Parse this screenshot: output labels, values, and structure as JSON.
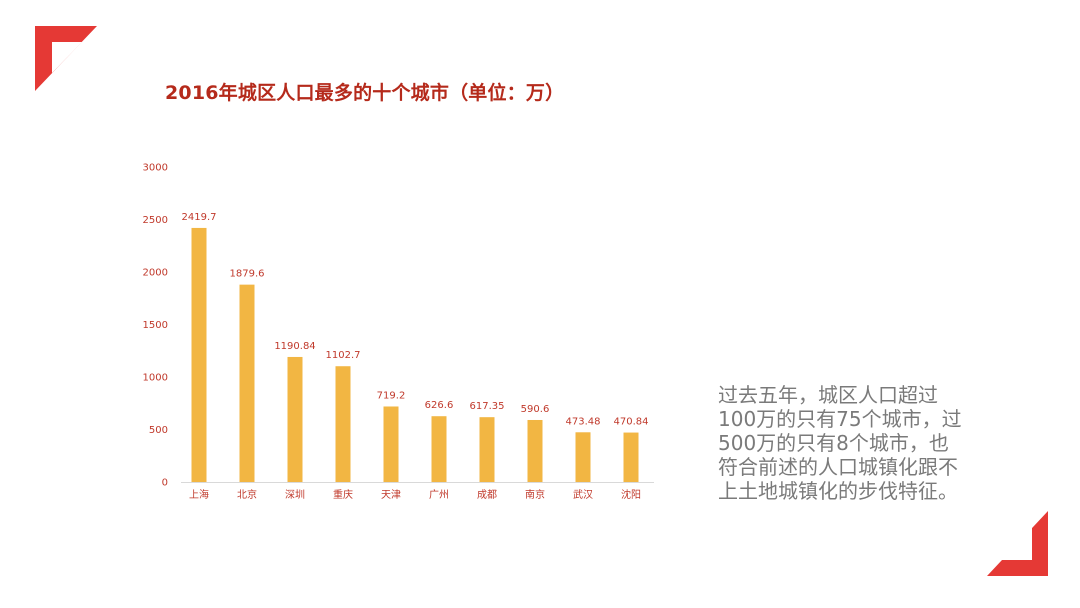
{
  "title": "2016年城区人口最多的十个城市（单位：万）",
  "chart_data": {
    "type": "bar",
    "categories": [
      "上海",
      "北京",
      "深圳",
      "重庆",
      "天津",
      "广州",
      "成都",
      "南京",
      "武汉",
      "沈阳"
    ],
    "values": [
      2419.7,
      1879.6,
      1190.84,
      1102.7,
      719.2,
      626.6,
      617.35,
      590.6,
      473.48,
      470.84
    ],
    "value_labels": [
      "2419.7",
      "1879.6",
      "1190.84",
      "1102.7",
      "719.2",
      "626.6",
      "617.35",
      "590.6",
      "473.48",
      "470.84"
    ],
    "yticks": [
      "0",
      "500",
      "1000",
      "1500",
      "2000",
      "2500",
      "3000"
    ],
    "ylim": [
      0,
      3000
    ],
    "grid": false,
    "legend": "none",
    "bar_color": "#f2b643",
    "label_color": "#c0392b"
  },
  "description_lines": [
    "过去五年，城区人口超过",
    "100万的只有75个城市，过",
    "500万的只有8个城市，也",
    "符合前述的人口城镇化跟不",
    "上土地城镇化的步伐特征。"
  ],
  "accent_color": "#e53935"
}
